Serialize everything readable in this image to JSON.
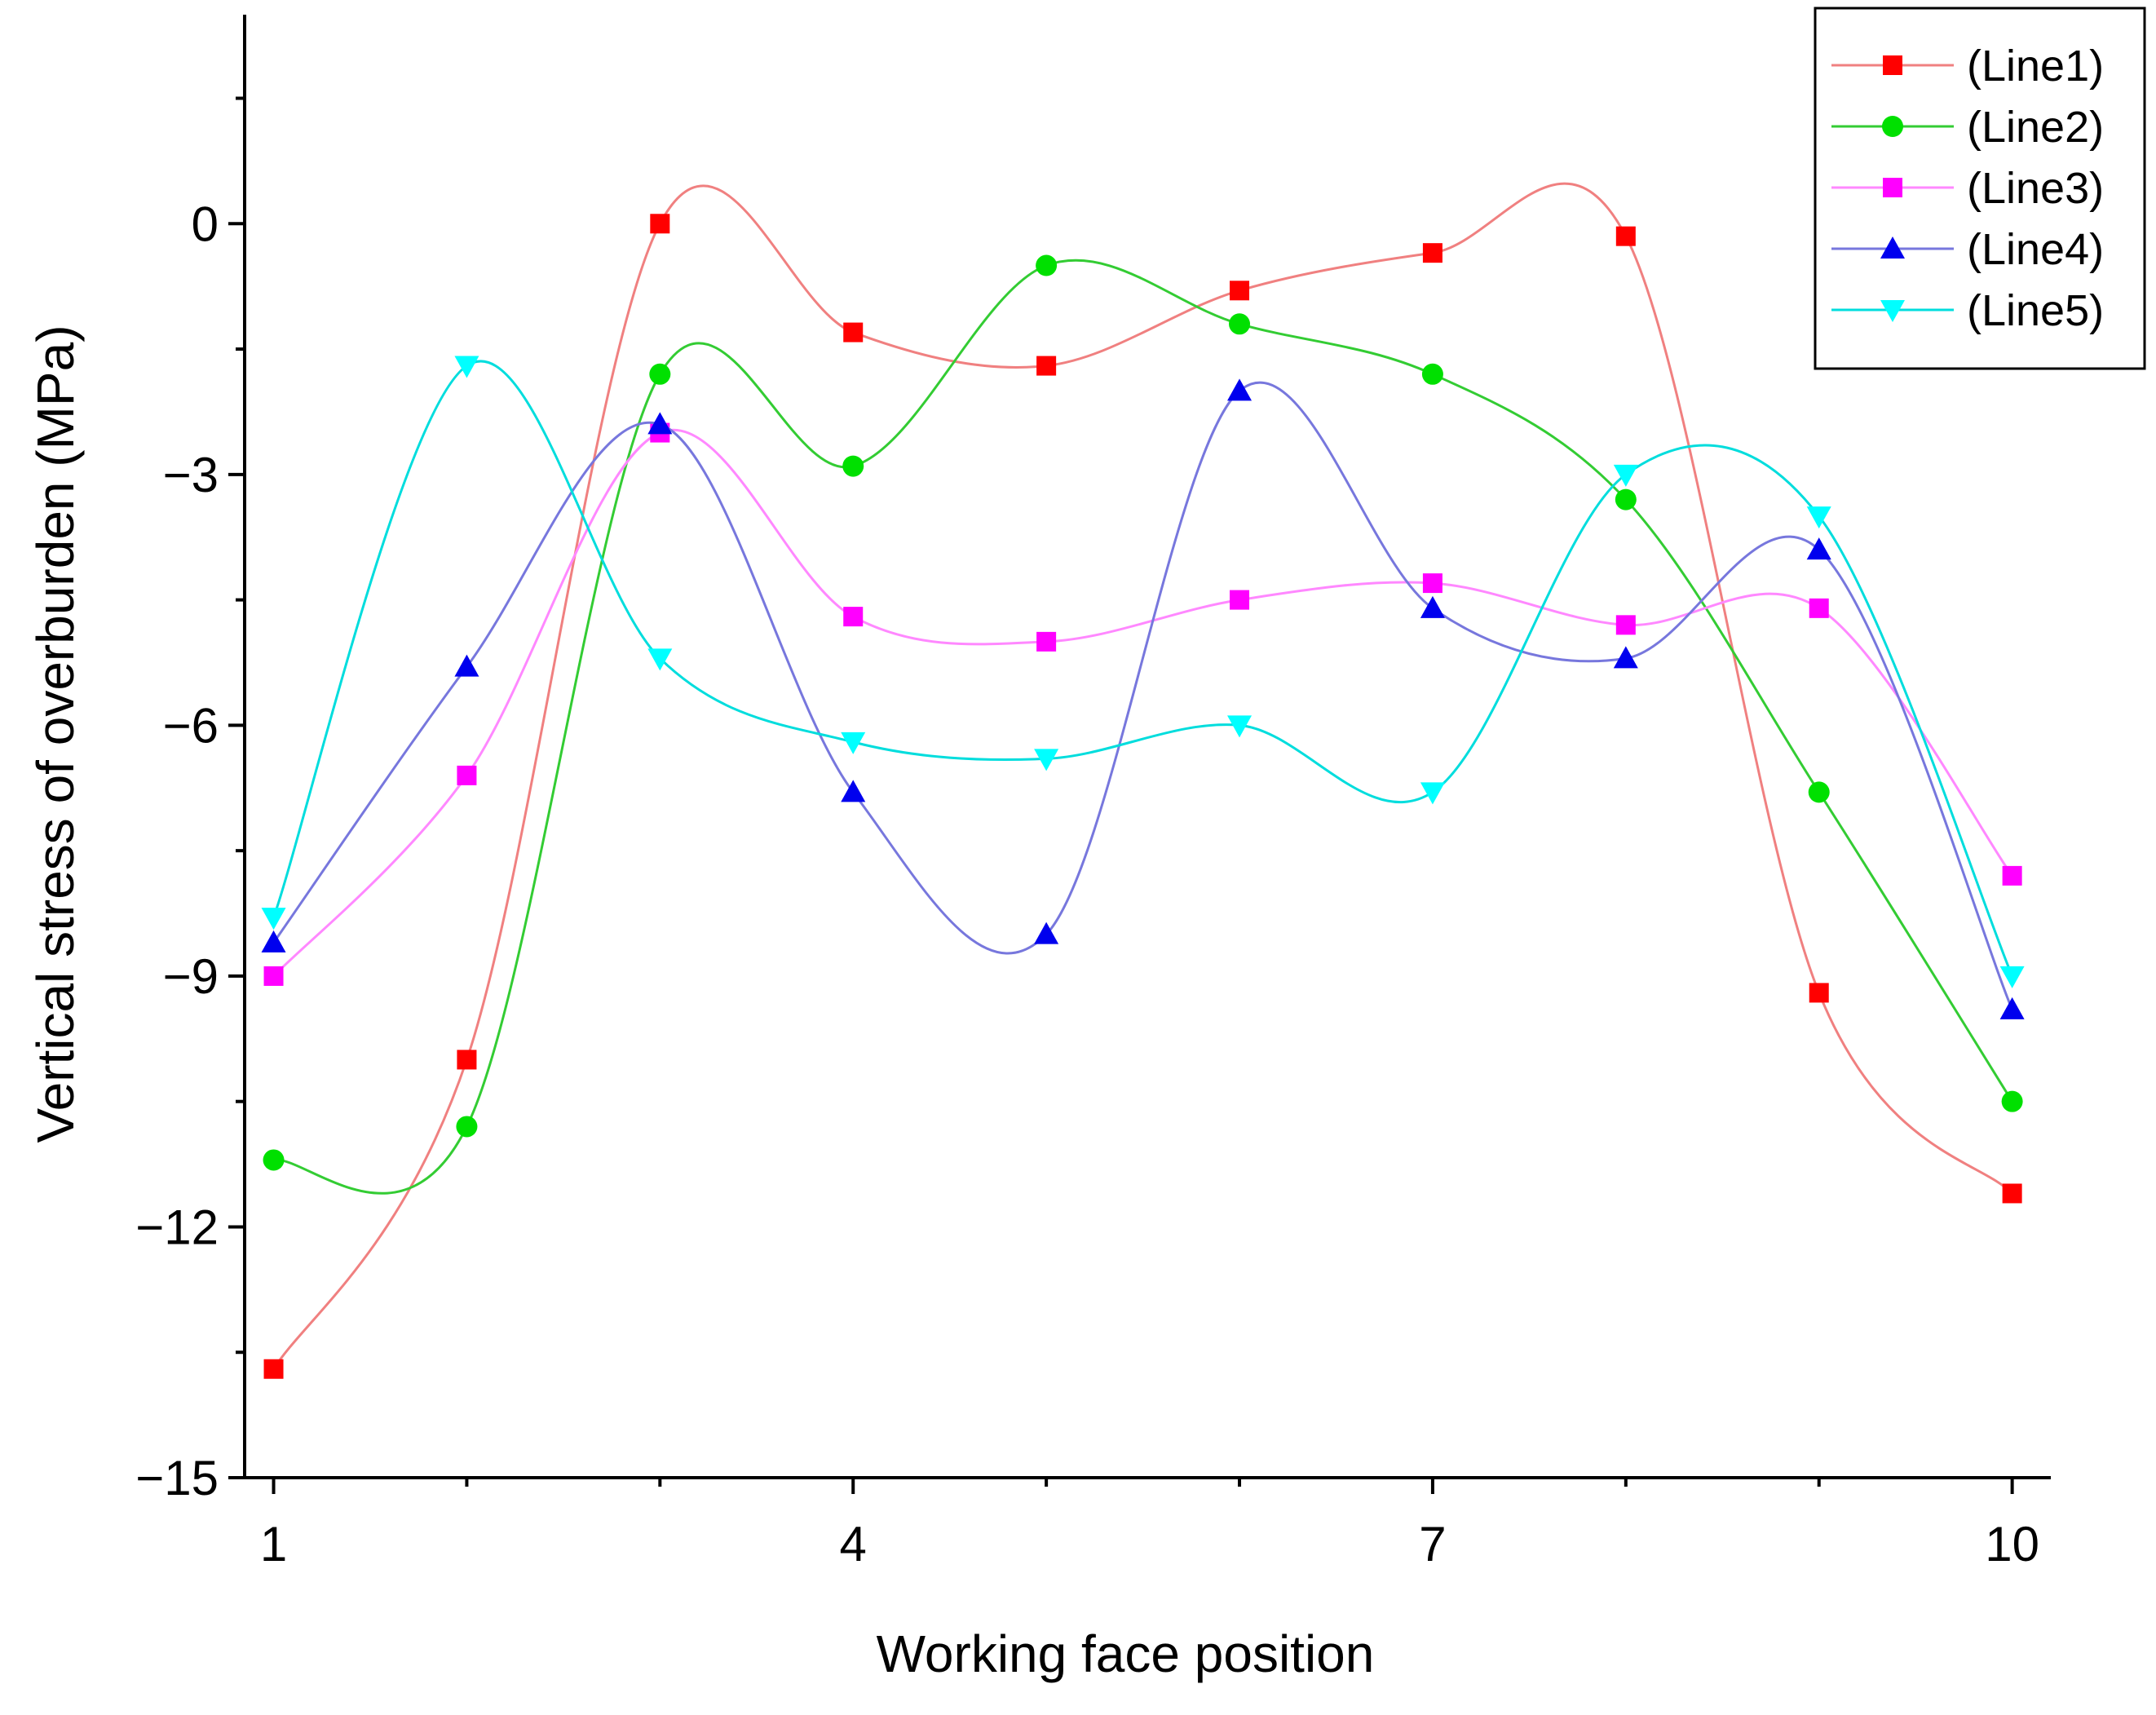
{
  "chart_data": {
    "type": "line",
    "title": "",
    "xlabel": "Working face position",
    "ylabel": "Vertical stress of overburden (MPa)",
    "xlim": [
      0.85,
      10.2
    ],
    "ylim": [
      -15,
      2.5
    ],
    "x": [
      1,
      2,
      3,
      4,
      5,
      6,
      7,
      8,
      9,
      10
    ],
    "xticks": [
      1,
      4,
      7,
      10
    ],
    "xticks_minor": [
      2,
      3,
      5,
      6,
      8,
      9
    ],
    "yticks": [
      0,
      -3,
      -6,
      -9,
      -12,
      -15
    ],
    "grid": false,
    "legend_position": "top-right",
    "smoothed": true,
    "series": [
      {
        "name": "(Line1)",
        "color": "#ff0000",
        "line_color": "#f08080",
        "marker": "square",
        "values": [
          -13.7,
          -10.0,
          0.0,
          -1.3,
          -1.7,
          -0.8,
          -0.35,
          -0.15,
          -9.2,
          -11.6
        ]
      },
      {
        "name": "(Line2)",
        "color": "#00e000",
        "line_color": "#33cc33",
        "marker": "circle",
        "values": [
          -11.2,
          -10.8,
          -1.8,
          -2.9,
          -0.5,
          -1.2,
          -1.8,
          -3.3,
          -6.8,
          -10.5
        ]
      },
      {
        "name": "(Line3)",
        "color": "#ff00ff",
        "line_color": "#ff88ff",
        "marker": "square",
        "values": [
          -9.0,
          -6.6,
          -2.5,
          -4.7,
          -5.0,
          -4.5,
          -4.3,
          -4.8,
          -4.6,
          -7.8
        ]
      },
      {
        "name": "(Line4)",
        "color": "#0000ee",
        "line_color": "#7777dd",
        "marker": "triangle-up",
        "values": [
          -8.6,
          -5.3,
          -2.4,
          -6.8,
          -8.5,
          -2.0,
          -4.6,
          -5.2,
          -3.9,
          -9.4
        ]
      },
      {
        "name": "(Line5)",
        "color": "#00ffff",
        "line_color": "#00dddd",
        "marker": "triangle-down",
        "values": [
          -8.3,
          -1.7,
          -5.2,
          -6.2,
          -6.4,
          -6.0,
          -6.8,
          -3.0,
          -3.5,
          -9.0
        ]
      }
    ]
  }
}
